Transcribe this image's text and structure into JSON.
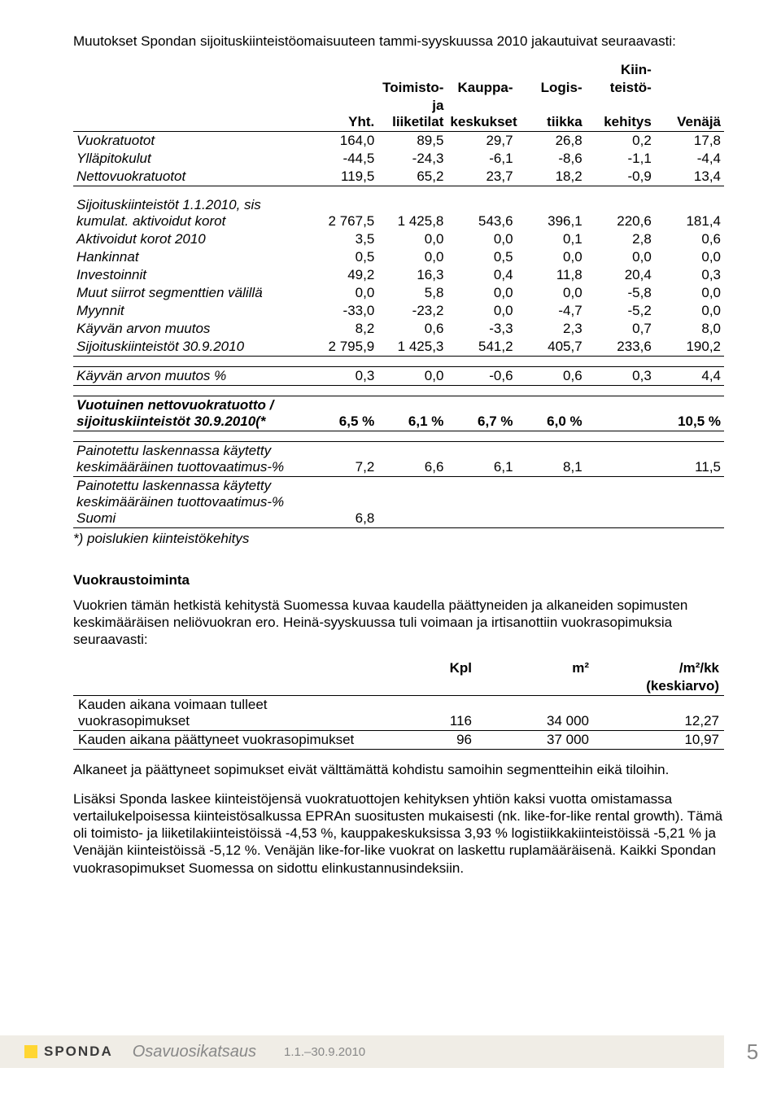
{
  "intro": "Muutokset Spondan sijoituskiinteistöomaisuuteen tammi-syyskuussa 2010 jakautuivat seuraavasti:",
  "table1": {
    "headers": [
      "",
      "Yht.",
      "Toimisto- ja liiketilat",
      "Kauppa-keskukset",
      "Logis-tiikka",
      "Kiin-teistö-kehitys",
      "Venäjä"
    ],
    "header_lines": [
      [
        "",
        "",
        "Toimisto-",
        "Kauppa-",
        "Logis-",
        "Kiin-",
        ""
      ],
      [
        "",
        "",
        "",
        "",
        "",
        "teistö-",
        ""
      ],
      [
        "",
        "Yht.",
        "ja liiketilat",
        "keskukset",
        "tiikka",
        "kehitys",
        "Venäjä"
      ]
    ],
    "rows_main": [
      {
        "label": "Vuokratuotot",
        "vals": [
          "164,0",
          "89,5",
          "29,7",
          "26,8",
          "0,2",
          "17,8"
        ],
        "italic": true
      },
      {
        "label": "Ylläpitokulut",
        "vals": [
          "-44,5",
          "-24,3",
          "-6,1",
          "-8,6",
          "-1,1",
          "-4,4"
        ],
        "italic": true
      },
      {
        "label": "Nettovuokratuotot",
        "vals": [
          "119,5",
          "65,2",
          "23,7",
          "18,2",
          "-0,9",
          "13,4"
        ],
        "italic": true
      }
    ],
    "rows_mid": [
      {
        "label": "Sijoituskiinteistöt 1.1.2010, sis kumulat. aktivoidut korot",
        "vals": [
          "2 767,5",
          "1 425,8",
          "543,6",
          "396,1",
          "220,6",
          "181,4"
        ],
        "italic": true,
        "two_line": true
      },
      {
        "label": "Aktivoidut korot 2010",
        "vals": [
          "3,5",
          "0,0",
          "0,0",
          "0,1",
          "2,8",
          "0,6"
        ],
        "italic": true
      },
      {
        "label": "Hankinnat",
        "vals": [
          "0,5",
          "0,0",
          "0,5",
          "0,0",
          "0,0",
          "0,0"
        ],
        "italic": true
      },
      {
        "label": "Investoinnit",
        "vals": [
          "49,2",
          "16,3",
          "0,4",
          "11,8",
          "20,4",
          "0,3"
        ],
        "italic": true
      },
      {
        "label": "Muut siirrot segmenttien välillä",
        "vals": [
          "0,0",
          "5,8",
          "0,0",
          "0,0",
          "-5,8",
          "0,0"
        ],
        "italic": true
      },
      {
        "label": "Myynnit",
        "vals": [
          "-33,0",
          "-23,2",
          "0,0",
          "-4,7",
          "-5,2",
          "0,0"
        ],
        "italic": true
      },
      {
        "label": "Käyvän arvon muutos",
        "vals": [
          "8,2",
          "0,6",
          "-3,3",
          "2,3",
          "0,7",
          "8,0"
        ],
        "italic": true
      },
      {
        "label": "Sijoituskiinteistöt 30.9.2010",
        "vals": [
          "2 795,9",
          "1 425,3",
          "541,2",
          "405,7",
          "233,6",
          "190,2"
        ],
        "italic": true
      }
    ],
    "row_pct": {
      "label": "Käyvän arvon muutos %",
      "vals": [
        "0,3",
        "0,0",
        "-0,6",
        "0,6",
        "0,3",
        "4,4"
      ],
      "italic": true
    },
    "row_yield": {
      "label": "Vuotuinen nettovuokratuotto / sijoituskiinteistöt 30.9.2010(*",
      "vals": [
        "6,5 %",
        "6,1 %",
        "6,7 %",
        "6,0 %",
        "",
        "10,5 %"
      ],
      "italic": true,
      "bold": true
    },
    "rows_bottom": [
      {
        "label": "Painotettu laskennassa käytetty keskimääräinen tuottovaatimus-%",
        "vals": [
          "7,2",
          "6,6",
          "6,1",
          "8,1",
          "",
          "11,5"
        ],
        "italic": true
      },
      {
        "label": "Painotettu laskennassa käytetty keskimääräinen tuottovaatimus-% Suomi",
        "vals": [
          "6,8",
          "",
          "",
          "",
          "",
          ""
        ],
        "italic": true
      }
    ],
    "footnote": "*) poislukien kiinteistökehitys"
  },
  "section2": {
    "title": "Vuokraustoiminta",
    "para1": "Vuokrien tämän hetkistä kehitystä Suomessa kuvaa kaudella päättyneiden ja alkaneiden sopimusten keskimääräisen neliövuokran ero. Heinä-syyskuussa tuli voimaan ja irtisanottiin vuokrasopimuksia seuraavasti:",
    "headers": [
      "",
      "Kpl",
      "m²",
      "/m²/kk (keskiarvo)"
    ],
    "header_sub": "(keskiarvo)",
    "rows": [
      {
        "label": "Kauden aikana voimaan tulleet vuokrasopimukset",
        "vals": [
          "116",
          "34 000",
          "12,27"
        ]
      },
      {
        "label": "Kauden aikana päättyneet vuokrasopimukset",
        "vals": [
          "96",
          "37 000",
          "10,97"
        ]
      }
    ],
    "para2": "Alkaneet ja päättyneet sopimukset eivät välttämättä kohdistu samoihin segmentteihin eikä tiloihin.",
    "para3": "Lisäksi Sponda laskee kiinteistöjensä vuokratuottojen kehityksen yhtiön kaksi vuotta omistamassa vertailukelpoisessa kiinteistösalkussa EPRAn suositusten mukaisesti (nk. like-for-like rental growth). Tämä oli toimisto- ja liiketilakiinteistöissä -4,53 %, kauppakeskuksissa 3,93 % logistiikkakiinteistöissä -5,21 % ja Venäjän kiinteistöissä -5,12 %. Venäjän like-for-like vuokrat on laskettu ruplamääräisenä. Kaikki Spondan vuokrasopimukset Suomessa on sidottu elinkustannusindeksiin."
  },
  "footer": {
    "brand": "SPONDA",
    "title": "Osavuosikatsaus",
    "dates": "1.1.–30.9.2010",
    "page": "5"
  }
}
